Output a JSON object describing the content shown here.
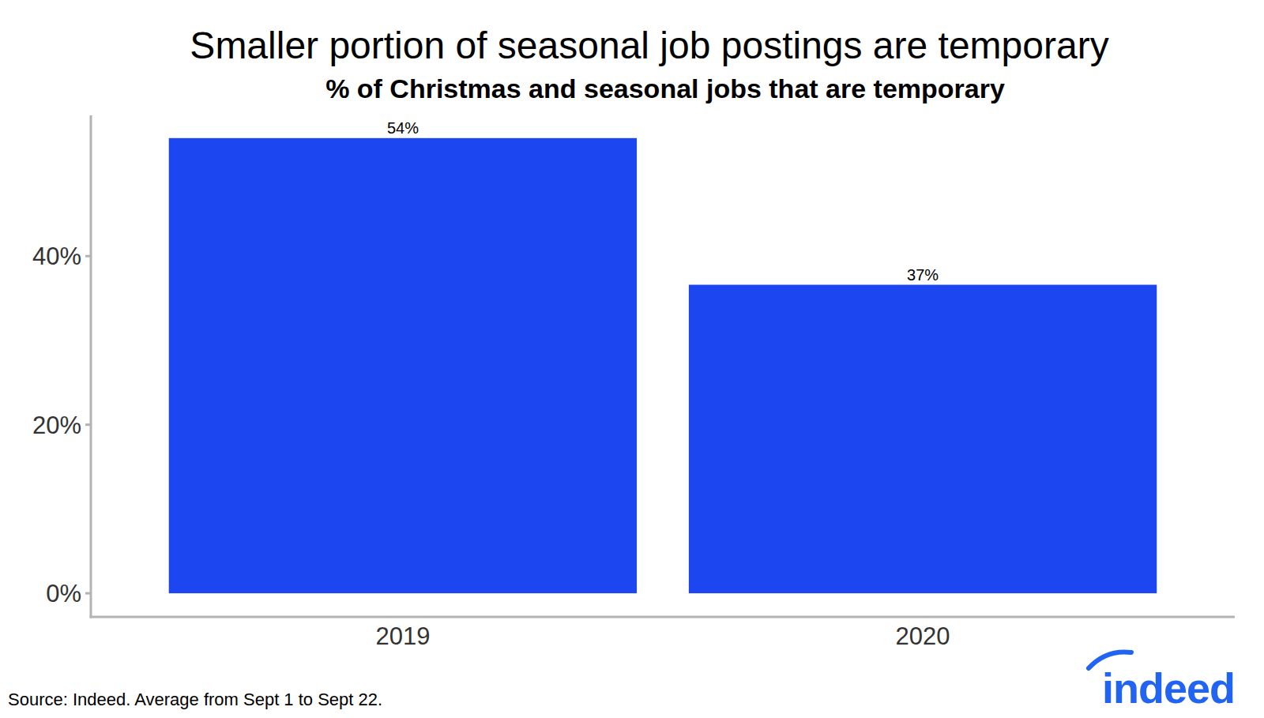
{
  "chart_data": {
    "type": "bar",
    "title": "Smaller portion of seasonal job postings are temporary",
    "subtitle": "% of Christmas and seasonal jobs that are temporary",
    "categories": [
      "2019",
      "2020"
    ],
    "values": [
      54,
      36.6
    ],
    "value_labels": [
      "54%",
      "37%"
    ],
    "data_labels": true,
    "color": "#1c47f0",
    "ylim": [
      -2.8,
      56.7
    ],
    "yticks": [
      {
        "value": 0,
        "label": "0%"
      },
      {
        "value": 20,
        "label": "20%"
      },
      {
        "value": 40,
        "label": "40%"
      }
    ],
    "grid": false,
    "source": "Source: Indeed. Average from Sept 1 to Sept 22.",
    "logo": "indeed"
  }
}
